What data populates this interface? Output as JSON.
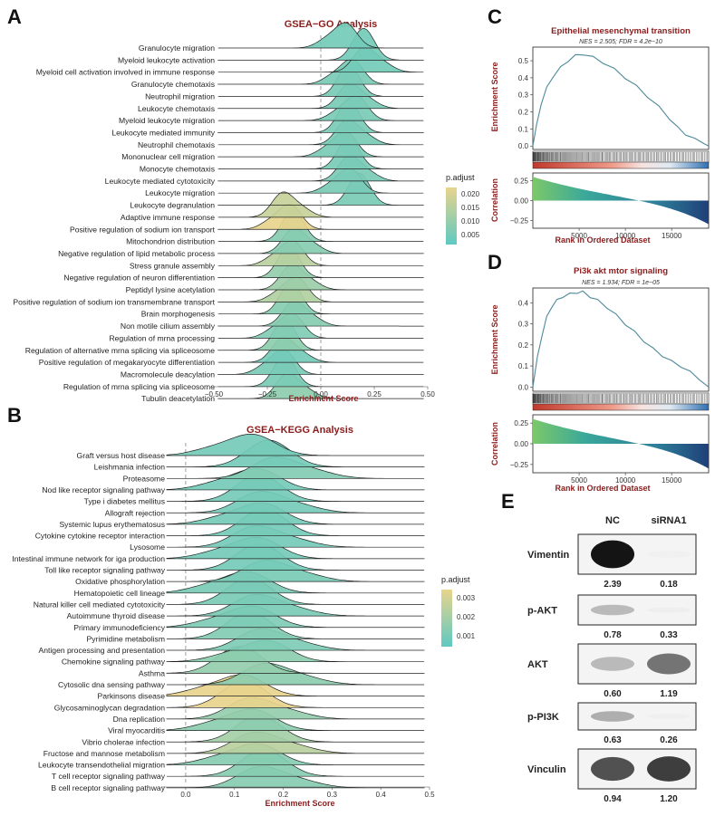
{
  "panels": {
    "a": {
      "label": "A",
      "title": "GSEA−GO Analysis"
    },
    "b": {
      "label": "B",
      "title": "GSEA−KEGG Analysis"
    },
    "c": {
      "label": "C",
      "title": "Epithelial mesenchymal transition",
      "subtitle": "NES = 2.505; FDR = 4.2e−10"
    },
    "d": {
      "label": "D",
      "title": "Pi3k akt mtor signaling",
      "subtitle": "NES = 1.934; FDR = 1e−05"
    },
    "e": {
      "label": "E"
    }
  },
  "chart_data": [
    {
      "id": "gsea-go",
      "type": "ridgeline",
      "title": "GSEA−GO Analysis",
      "xlabel": "Enrichment Score",
      "xlim": [
        -0.5,
        0.5
      ],
      "x_ticks": [
        "−0.50",
        "−0.25",
        "0.00",
        "0.25",
        "0.50"
      ],
      "legend": {
        "title": "p.adjust",
        "ticks": [
          "0.020",
          "0.015",
          "0.010",
          "0.005"
        ],
        "position": "right",
        "colors": [
          "#e8d48c",
          "#5ec9c1"
        ]
      },
      "categories": [
        "Granulocyte migration",
        "Myeloid leukocyte activation",
        "Myeloid cell activation involved in immune response",
        "Granulocyte chemotaxis",
        "Neutrophil migration",
        "Leukocyte chemotaxis",
        "Myeloid leukocyte migration",
        "Leukocyte mediated immunity",
        "Neutrophil chemotaxis",
        "Mononuclear cell migration",
        "Monocyte chemotaxis",
        "Leukocyte mediated cytotoxicity",
        "Leukocyte migration",
        "Leukocyte degranulation",
        "Adaptive immune response",
        "Positive regulation of sodium ion transport",
        "Mitochondrion distribution",
        "Negative regulation of lipid metabolic process",
        "Stress granule assembly",
        "Negative regulation of neuron differentiation",
        "Peptidyl lysine acetylation",
        "Positive regulation of sodium ion transmembrane transport",
        "Brain morphogenesis",
        "Non motile cilium assembly",
        "Regulation of mrna processing",
        "Regulation of alternative mrna splicing via spliceosome",
        "Positive regulation of megakaryocyte differentiation",
        "Macromolecule deacylation",
        "Regulation of mrna splicing via spliceosome",
        "Tubulin deacetylation"
      ],
      "peaks": [
        0.12,
        0.2,
        0.2,
        0.15,
        0.13,
        0.13,
        0.17,
        0.13,
        0.12,
        0.12,
        0.13,
        0.13,
        0.14,
        0.18,
        -0.18,
        -0.14,
        -0.13,
        -0.13,
        -0.13,
        -0.15,
        -0.14,
        -0.11,
        -0.14,
        -0.13,
        -0.13,
        -0.17,
        -0.18,
        -0.17,
        -0.17,
        -0.16
      ],
      "p_adjust": [
        0.003,
        0.003,
        0.003,
        0.004,
        0.004,
        0.004,
        0.004,
        0.004,
        0.004,
        0.004,
        0.004,
        0.004,
        0.004,
        0.004,
        0.015,
        0.022,
        0.006,
        0.006,
        0.013,
        0.008,
        0.009,
        0.012,
        0.006,
        0.006,
        0.005,
        0.007,
        0.003,
        0.004,
        0.004,
        0.007
      ]
    },
    {
      "id": "gsea-kegg",
      "type": "ridgeline",
      "title": "GSEA−KEGG Analysis",
      "xlabel": "Enrichment Score",
      "xlim": [
        -0.05,
        0.5
      ],
      "x_ticks": [
        "0.0",
        "0.1",
        "0.2",
        "0.3",
        "0.4",
        "0.5"
      ],
      "legend": {
        "title": "p.adjust",
        "ticks": [
          "0.003",
          "0.002",
          "0.001"
        ],
        "position": "right",
        "colors": [
          "#e8d48c",
          "#5ec9c1"
        ]
      },
      "categories": [
        "Graft versus host disease",
        "Leishmania infection",
        "Proteasome",
        "Nod like receptor signaling pathway",
        "Type i diabetes mellitus",
        "Allograft rejection",
        "Systemic lupus erythematosus",
        "Cytokine cytokine receptor interaction",
        "Lysosome",
        "Intestinal immune network for iga production",
        "Toll like receptor signaling pathway",
        "Oxidative phosphorylation",
        "Hematopoietic cell lineage",
        "Natural killer cell mediated cytotoxicity",
        "Autoimmune thyroid disease",
        "Primary immunodeficiency",
        "Pyrimidine metabolism",
        "Antigen processing and presentation",
        "Chemokine signaling pathway",
        "Asthma",
        "Cytosolic dna sensing pathway",
        "Parkinsons disease",
        "Glycosaminoglycan degradation",
        "Dna replication",
        "Viral myocarditis",
        "Vibrio cholerae infection",
        "Fructose and mannose metabolism",
        "Leukocyte transendothelial migration",
        "T cell receptor signaling pathway",
        "B cell receptor signaling pathway"
      ],
      "peaks": [
        0.14,
        0.17,
        0.18,
        0.15,
        0.15,
        0.15,
        0.16,
        0.16,
        0.14,
        0.15,
        0.15,
        0.16,
        0.13,
        0.13,
        0.14,
        0.14,
        0.13,
        0.15,
        0.17,
        0.11,
        0.16,
        0.12,
        0.12,
        0.13,
        0.14,
        0.15,
        0.14,
        0.15,
        0.16,
        0.15
      ],
      "p_adjust": [
        0.0005,
        0.0005,
        0.0008,
        0.0005,
        0.0005,
        0.0005,
        0.0005,
        0.0005,
        0.0005,
        0.0005,
        0.0005,
        0.0006,
        0.0006,
        0.0006,
        0.0006,
        0.0007,
        0.0008,
        0.0007,
        0.001,
        0.0012,
        0.001,
        0.0032,
        0.0036,
        0.0012,
        0.001,
        0.0015,
        0.002,
        0.0009,
        0.0009,
        0.0009
      ]
    },
    {
      "id": "gsea-emt",
      "type": "line",
      "title": "Epithelial mesenchymal transition",
      "xlabel": "Rank in Ordered Dataset",
      "ylabel": "Enrichment Score",
      "xlim": [
        0,
        19000
      ],
      "ylim": [
        -0.02,
        0.58
      ],
      "y_ticks": [
        "0.5",
        "0.4",
        "0.3",
        "0.2",
        "0.1",
        "0.0"
      ],
      "x_ticks": [
        "5000",
        "10000",
        "15000"
      ],
      "x": [
        0,
        400,
        900,
        1500,
        2200,
        3000,
        3800,
        4600,
        5400,
        6500,
        7600,
        8800,
        10000,
        11200,
        12400,
        13600,
        14800,
        15600,
        16500,
        17500,
        18500,
        19000
      ],
      "y": [
        0,
        0.12,
        0.25,
        0.34,
        0.41,
        0.46,
        0.5,
        0.53,
        0.54,
        0.52,
        0.49,
        0.45,
        0.4,
        0.35,
        0.29,
        0.23,
        0.16,
        0.11,
        0.07,
        0.04,
        0.02,
        0.0
      ],
      "correlation": {
        "ylabel": "Correlation",
        "y_ticks": [
          "0.25",
          "0.00",
          "−0.25"
        ],
        "ylim": [
          -0.35,
          0.35
        ]
      }
    },
    {
      "id": "gsea-pi3k",
      "type": "line",
      "title": "Pi3k akt mtor signaling",
      "xlabel": "Rank in Ordered Dataset",
      "ylabel": "Enrichment Score",
      "xlim": [
        0,
        19000
      ],
      "ylim": [
        -0.02,
        0.47
      ],
      "y_ticks": [
        "0.4",
        "0.3",
        "0.2",
        "0.1",
        "0.0"
      ],
      "x_ticks": [
        "5000",
        "10000",
        "15000"
      ],
      "x": [
        0,
        500,
        1000,
        1500,
        2000,
        2600,
        3200,
        4000,
        4800,
        5400,
        6200,
        7000,
        8000,
        9000,
        10000,
        11000,
        12000,
        13000,
        14000,
        15000,
        16000,
        17000,
        18000,
        19000
      ],
      "y": [
        0,
        0.14,
        0.25,
        0.33,
        0.38,
        0.41,
        0.43,
        0.44,
        0.45,
        0.45,
        0.43,
        0.41,
        0.38,
        0.34,
        0.3,
        0.26,
        0.22,
        0.18,
        0.15,
        0.12,
        0.1,
        0.07,
        0.04,
        0.0
      ],
      "correlation": {
        "ylabel": "Correlation",
        "y_ticks": [
          "0.25",
          "0.00",
          "−0.25"
        ],
        "ylim": [
          -0.35,
          0.35
        ]
      }
    }
  ],
  "western_blot": {
    "columns": [
      "NC",
      "siRNA1"
    ],
    "rows": [
      {
        "label": "Vimentin",
        "values": [
          "2.39",
          "0.18"
        ],
        "intensity": [
          1.0,
          0.05
        ]
      },
      {
        "label": "p-AKT",
        "values": [
          "0.78",
          "0.33"
        ],
        "intensity": [
          0.5,
          0.12
        ]
      },
      {
        "label": "AKT",
        "values": [
          "0.60",
          "1.19"
        ],
        "intensity": [
          0.5,
          0.75
        ]
      },
      {
        "label": "p-PI3K",
        "values": [
          "0.63",
          "0.26"
        ],
        "intensity": [
          0.55,
          0.08
        ]
      },
      {
        "label": "Vinculin",
        "values": [
          "0.94",
          "1.20"
        ],
        "intensity": [
          0.85,
          0.9
        ]
      }
    ]
  }
}
